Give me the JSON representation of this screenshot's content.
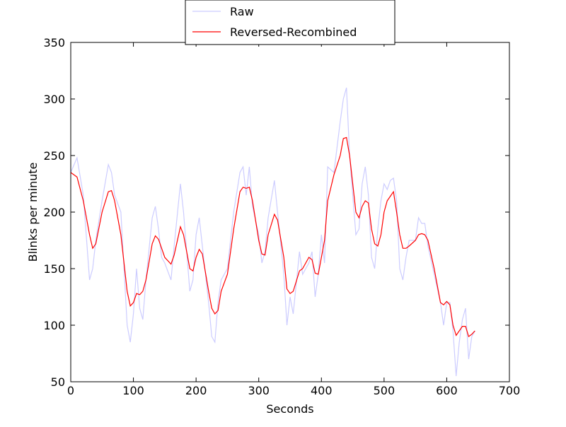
{
  "chart_data": {
    "type": "line",
    "xlabel": "Seconds",
    "ylabel": "Blinks per minute",
    "x": [
      0,
      10,
      20,
      30,
      35,
      40,
      50,
      60,
      65,
      70,
      80,
      90,
      95,
      100,
      105,
      110,
      115,
      120,
      130,
      135,
      140,
      145,
      150,
      160,
      165,
      175,
      180,
      190,
      195,
      200,
      205,
      210,
      220,
      225,
      230,
      235,
      240,
      250,
      260,
      270,
      275,
      280,
      285,
      290,
      300,
      305,
      310,
      315,
      325,
      330,
      340,
      345,
      350,
      355,
      365,
      370,
      380,
      385,
      390,
      395,
      400,
      405,
      410,
      420,
      430,
      435,
      440,
      445,
      455,
      460,
      465,
      470,
      475,
      480,
      485,
      490,
      495,
      500,
      505,
      510,
      515,
      520,
      525,
      530,
      535,
      540,
      550,
      555,
      560,
      565,
      570,
      580,
      590,
      595,
      600,
      605,
      610,
      615,
      620,
      625,
      630,
      635,
      640,
      645
    ],
    "series": [
      {
        "name": "Raw",
        "color": "#ccccff",
        "values": [
          235,
          248,
          215,
          140,
          150,
          175,
          210,
          242,
          235,
          215,
          200,
          100,
          85,
          110,
          150,
          115,
          105,
          140,
          195,
          205,
          185,
          160,
          155,
          140,
          170,
          225,
          200,
          130,
          140,
          180,
          195,
          170,
          120,
          90,
          85,
          120,
          140,
          150,
          200,
          235,
          240,
          215,
          240,
          205,
          180,
          155,
          165,
          195,
          228,
          200,
          145,
          100,
          125,
          110,
          165,
          145,
          155,
          165,
          125,
          145,
          180,
          155,
          240,
          235,
          280,
          300,
          310,
          250,
          180,
          185,
          225,
          240,
          215,
          160,
          150,
          185,
          210,
          225,
          220,
          228,
          230,
          210,
          150,
          140,
          160,
          175,
          175,
          195,
          190,
          190,
          170,
          145,
          120,
          100,
          120,
          120,
          95,
          55,
          85,
          105,
          115,
          70,
          90,
          95
        ]
      },
      {
        "name": "Reversed-Recombined",
        "color": "#ff0000",
        "values": [
          235,
          231,
          210,
          180,
          168,
          172,
          200,
          218,
          219,
          210,
          180,
          130,
          117,
          120,
          128,
          127,
          130,
          140,
          172,
          179,
          176,
          168,
          160,
          154,
          162,
          187,
          180,
          150,
          148,
          160,
          167,
          163,
          130,
          115,
          110,
          113,
          130,
          145,
          185,
          218,
          222,
          221,
          222,
          210,
          175,
          163,
          162,
          180,
          198,
          193,
          160,
          132,
          128,
          130,
          148,
          150,
          160,
          158,
          146,
          145,
          160,
          175,
          210,
          233,
          250,
          265,
          266,
          250,
          200,
          195,
          205,
          210,
          208,
          185,
          172,
          170,
          180,
          200,
          210,
          214,
          218,
          200,
          180,
          168,
          168,
          170,
          175,
          180,
          181,
          180,
          175,
          150,
          120,
          118,
          121,
          118,
          100,
          91,
          95,
          99,
          99,
          90,
          92,
          95
        ]
      }
    ],
    "xlim": [
      0,
      700
    ],
    "ylim": [
      50,
      350
    ],
    "xticks": [
      0,
      100,
      200,
      300,
      400,
      500,
      600,
      700
    ],
    "yticks": [
      50,
      100,
      150,
      200,
      250,
      300,
      350
    ],
    "legend": "upper center"
  }
}
